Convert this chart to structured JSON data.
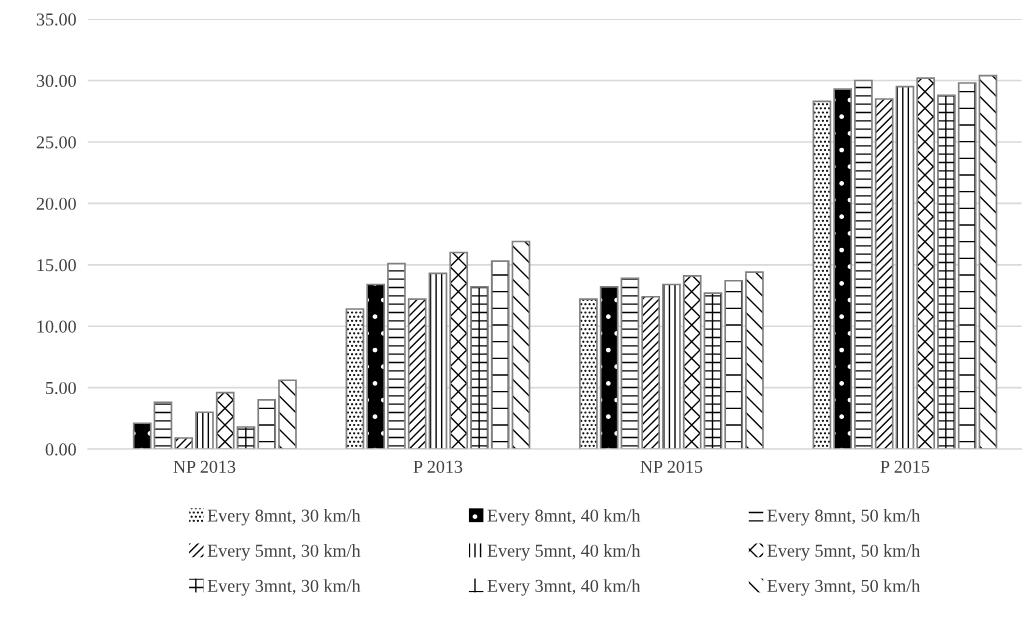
{
  "chart_data": {
    "type": "bar",
    "categories": [
      "NP 2013",
      "P 2013",
      "NP 2015",
      "P 2015"
    ],
    "series": [
      {
        "name": "Every 8mnt, 30 km/h",
        "color": "#ffffff",
        "values": [
          null,
          11.4,
          12.2,
          28.3
        ]
      },
      {
        "name": "Every 8mnt, 40 km/h",
        "color": "#000000",
        "values": [
          2.1,
          13.4,
          13.2,
          29.3
        ]
      },
      {
        "name": "Every 8mnt, 50 km/h",
        "color": "#ffffff",
        "values": [
          3.8,
          15.1,
          13.9,
          30.0
        ]
      },
      {
        "name": "Every 5mnt, 30 km/h",
        "color": "#ffffff",
        "values": [
          0.9,
          12.2,
          12.4,
          28.5
        ]
      },
      {
        "name": "Every 5mnt, 40 km/h",
        "color": "#ffffff",
        "values": [
          3.0,
          14.3,
          13.4,
          29.5
        ]
      },
      {
        "name": "Every 5mnt, 50 km/h",
        "color": "#ffffff",
        "values": [
          4.6,
          16.0,
          14.1,
          30.2
        ]
      },
      {
        "name": "Every 3mnt, 30 km/h",
        "color": "#ffffff",
        "values": [
          1.8,
          13.2,
          12.7,
          28.8
        ]
      },
      {
        "name": "Every 3mnt, 40 km/h",
        "color": "#ffffff",
        "values": [
          4.0,
          15.3,
          13.7,
          29.8
        ]
      },
      {
        "name": "Every 3mnt, 50 km/h",
        "color": "#ffffff",
        "values": [
          5.6,
          16.9,
          14.4,
          30.4
        ]
      }
    ],
    "ylim": [
      0,
      35
    ],
    "yticks": [
      {
        "value": 0,
        "label": "0.00"
      },
      {
        "value": 5,
        "label": "5.00"
      },
      {
        "value": 10,
        "label": "10.00"
      },
      {
        "value": 15,
        "label": "15.00"
      },
      {
        "value": 20,
        "label": "20.00"
      },
      {
        "value": 25,
        "label": "25.00"
      },
      {
        "value": 30,
        "label": "30.00"
      },
      {
        "value": 35,
        "label": "35.00"
      }
    ],
    "grid": "y",
    "legend": "bottom"
  }
}
